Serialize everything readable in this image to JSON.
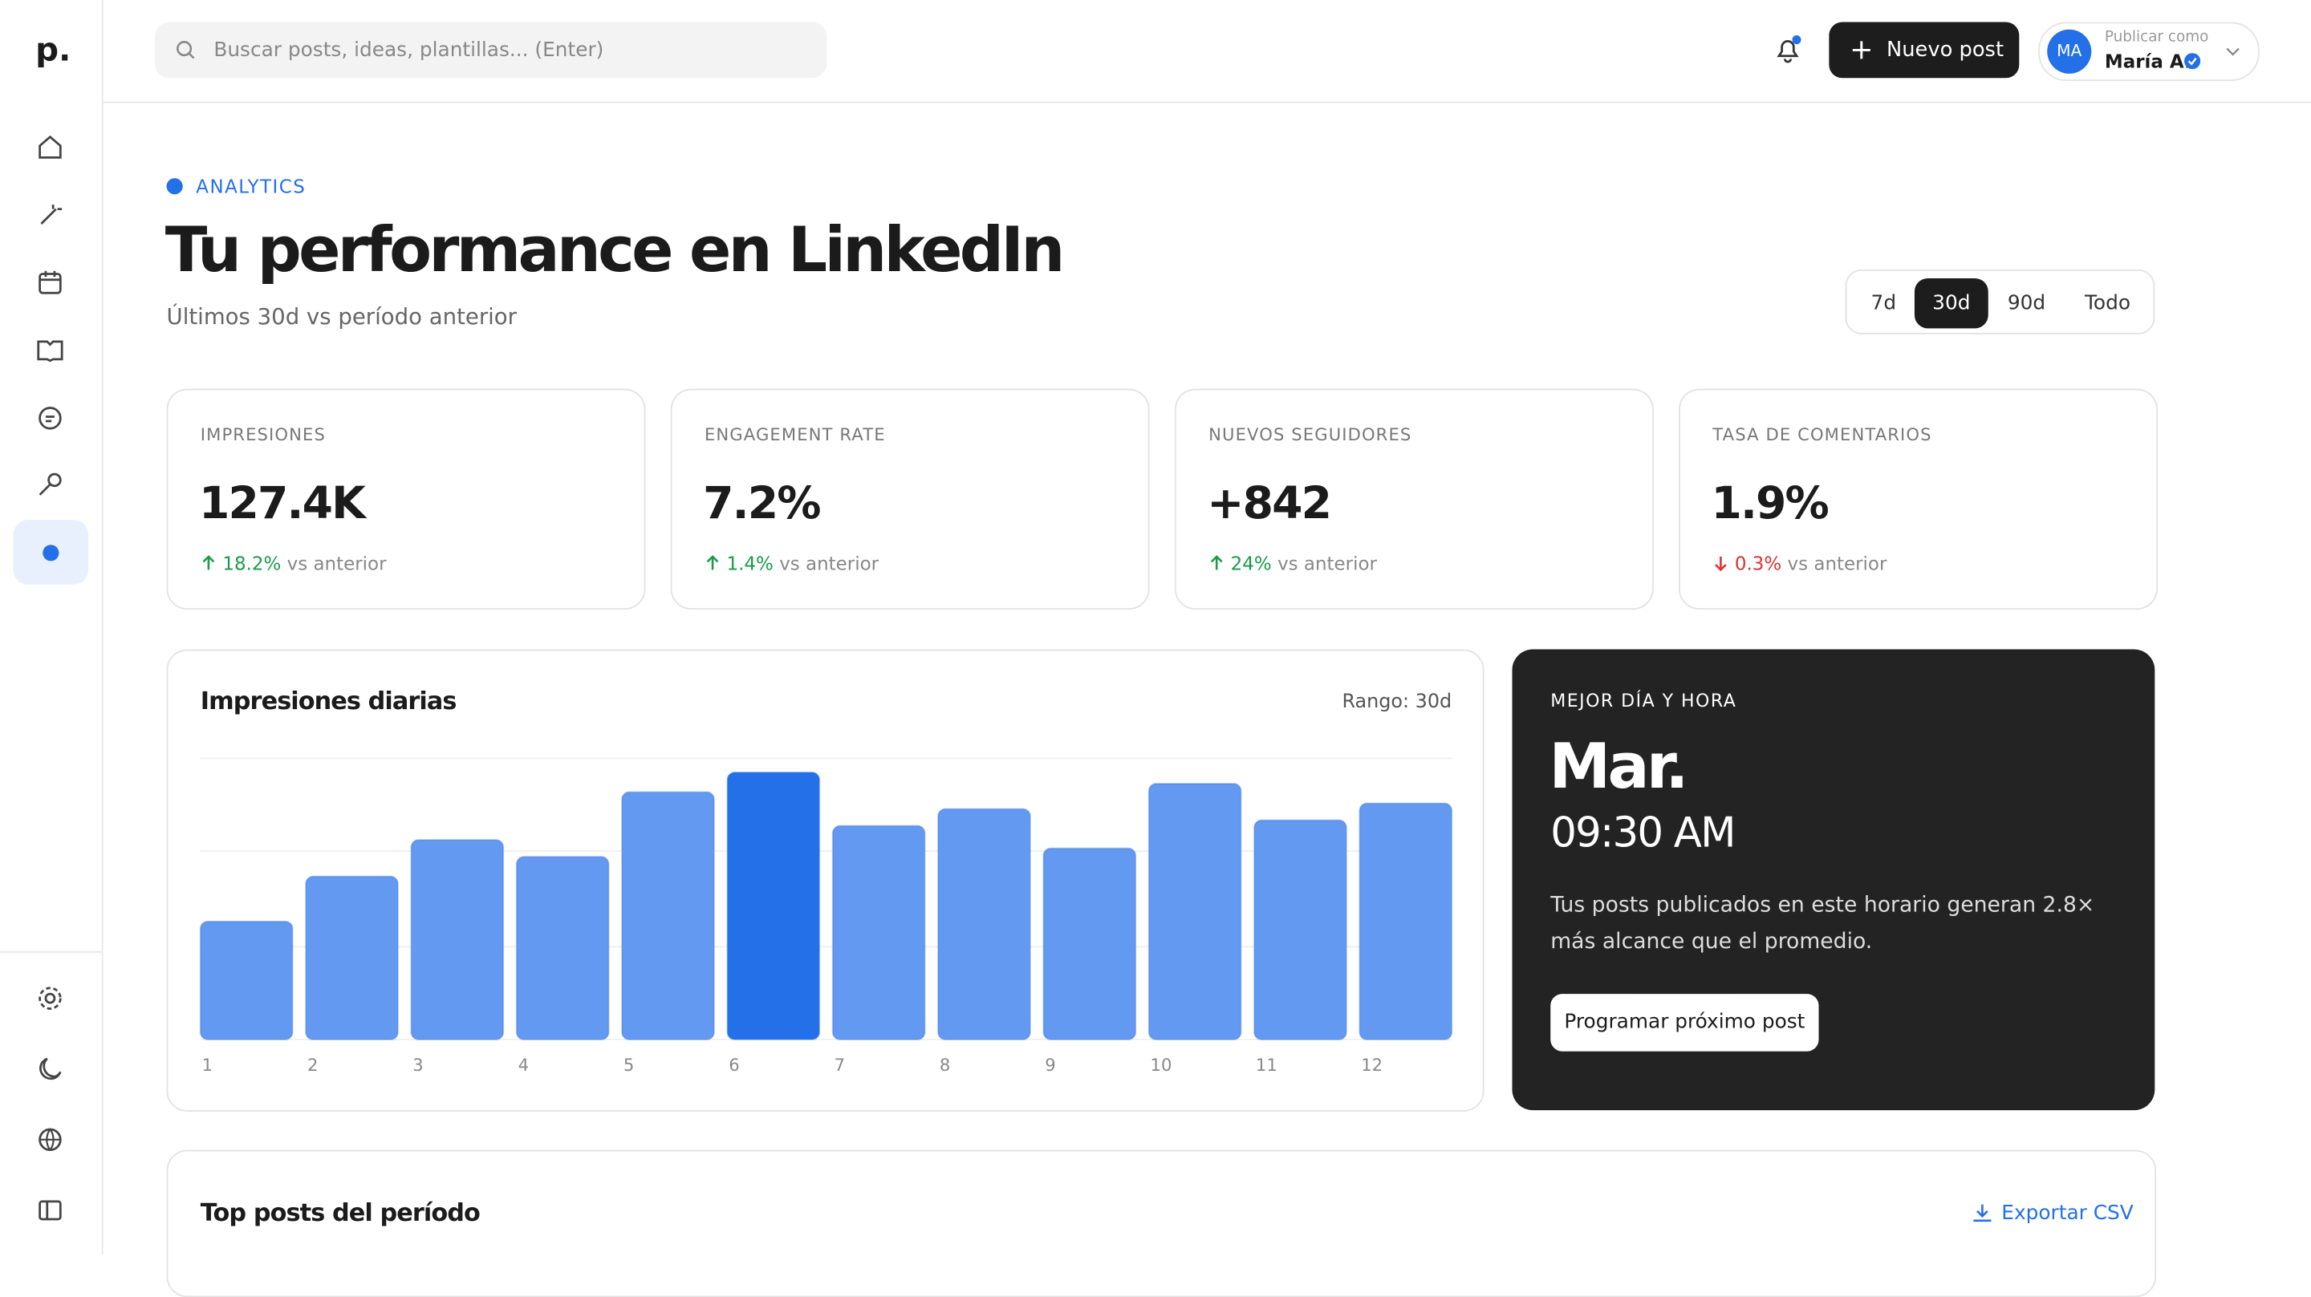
{
  "sidebar": {
    "logo": "p."
  },
  "topbar": {
    "search_placeholder": "Buscar posts, ideas, plantillas... (Enter)",
    "new_post": "Nuevo post",
    "avatar": "MA",
    "publish_as": "Publicar como",
    "user": "María A."
  },
  "header": {
    "eyebrow": "ANALYTICS",
    "title": "Tu performance en LinkedIn",
    "subtitle": "Últimos 30d vs período anterior"
  },
  "range_tabs": {
    "options": [
      "7d",
      "30d",
      "90d",
      "Todo"
    ],
    "active": 1
  },
  "kpis": [
    {
      "label": "IMPRESIONES",
      "value": "127.4K",
      "delta": "18.2%",
      "direction": "up",
      "note": "vs anterior"
    },
    {
      "label": "ENGAGEMENT RATE",
      "value": "7.2%",
      "delta": "1.4%",
      "direction": "up",
      "note": "vs anterior"
    },
    {
      "label": "NUEVOS SEGUIDORES",
      "value": "+842",
      "delta": "24%",
      "direction": "up",
      "note": "vs anterior"
    },
    {
      "label": "TASA DE COMENTARIOS",
      "value": "1.9%",
      "delta": "0.3%",
      "direction": "down",
      "note": "vs anterior"
    }
  ],
  "chart_data": {
    "type": "bar",
    "title": "Impresiones diarias",
    "range_label": "Rango: 30d",
    "categories": [
      "1",
      "2",
      "3",
      "4",
      "5",
      "6",
      "7",
      "8",
      "9",
      "10",
      "11",
      "12"
    ],
    "values": [
      42,
      58,
      71,
      65,
      88,
      95,
      76,
      82,
      68,
      91,
      78,
      84
    ],
    "colors": [
      "#6399f1",
      "#6399f1",
      "#6399f1",
      "#6399f1",
      "#6399f1",
      "#2370e9",
      "#6399f1",
      "#6399f1",
      "#6399f1",
      "#6399f1",
      "#6399f1",
      "#6399f1"
    ],
    "ylim": [
      0,
      100
    ],
    "yticks": [
      0,
      33,
      67,
      100
    ],
    "grid": true
  },
  "best_time": {
    "eyebrow": "MEJOR DÍA Y HORA",
    "day": "Mar.",
    "time": "09:30 AM",
    "text": "Tus posts publicados en este horario generan 2.8× más alcance que el promedio.",
    "button": "Programar próximo post"
  },
  "top_posts": {
    "title": "Top posts del período",
    "export": "Exportar CSV"
  }
}
